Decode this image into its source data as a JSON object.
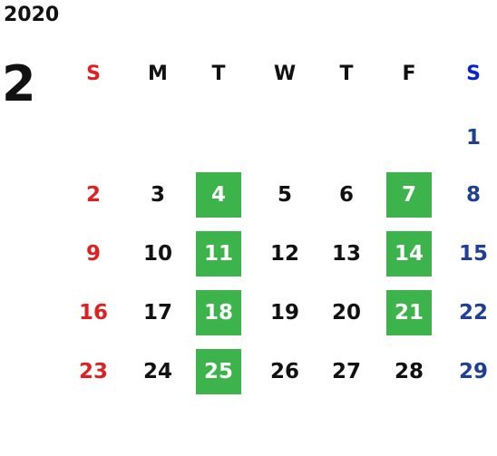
{
  "calendar": {
    "year": "2020",
    "month": "2",
    "weekdays": [
      "S",
      "M",
      "T",
      "W",
      "T",
      "F",
      "S"
    ],
    "colors": {
      "sunday": "#e02020",
      "saturday": "#0a22cc",
      "saturday_date": "#1e3f94",
      "weekday": "#111111",
      "highlight_bg": "#3db44b",
      "highlight_text": "#ffffff"
    },
    "weeks": [
      [
        null,
        null,
        null,
        null,
        null,
        null,
        {
          "day": "1",
          "highlight": false
        }
      ],
      [
        {
          "day": "2",
          "highlight": false
        },
        {
          "day": "3",
          "highlight": false
        },
        {
          "day": "4",
          "highlight": true
        },
        {
          "day": "5",
          "highlight": false
        },
        {
          "day": "6",
          "highlight": false
        },
        {
          "day": "7",
          "highlight": true
        },
        {
          "day": "8",
          "highlight": false
        }
      ],
      [
        {
          "day": "9",
          "highlight": false
        },
        {
          "day": "10",
          "highlight": false
        },
        {
          "day": "11",
          "highlight": true
        },
        {
          "day": "12",
          "highlight": false
        },
        {
          "day": "13",
          "highlight": false
        },
        {
          "day": "14",
          "highlight": true
        },
        {
          "day": "15",
          "highlight": false
        }
      ],
      [
        {
          "day": "16",
          "highlight": false
        },
        {
          "day": "17",
          "highlight": false
        },
        {
          "day": "18",
          "highlight": true
        },
        {
          "day": "19",
          "highlight": false
        },
        {
          "day": "20",
          "highlight": false
        },
        {
          "day": "21",
          "highlight": true
        },
        {
          "day": "22",
          "highlight": false
        }
      ],
      [
        {
          "day": "23",
          "highlight": false
        },
        {
          "day": "24",
          "highlight": false
        },
        {
          "day": "25",
          "highlight": true
        },
        {
          "day": "26",
          "highlight": false
        },
        {
          "day": "27",
          "highlight": false
        },
        {
          "day": "28",
          "highlight": false
        },
        {
          "day": "29",
          "highlight": false
        }
      ]
    ]
  }
}
